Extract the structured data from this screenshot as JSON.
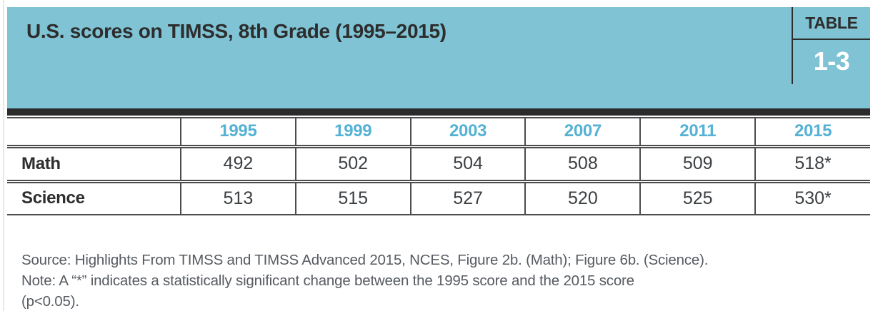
{
  "header": {
    "title": "U.S. scores on TIMSS, 8th Grade (1995–2015)",
    "corner_label": "TABLE",
    "corner_number": "1-3"
  },
  "table": {
    "columns": [
      "",
      "1995",
      "1999",
      "2003",
      "2007",
      "2011",
      "2015"
    ],
    "rows": [
      {
        "label": "Math",
        "values": [
          "492",
          "502",
          "504",
          "508",
          "509",
          "518*"
        ]
      },
      {
        "label": "Science",
        "values": [
          "513",
          "515",
          "527",
          "520",
          "525",
          "530*"
        ]
      }
    ]
  },
  "chart_data": {
    "type": "table",
    "title": "U.S. scores on TIMSS, 8th Grade (1995–2015)",
    "categories": [
      "1995",
      "1999",
      "2003",
      "2007",
      "2011",
      "2015"
    ],
    "series": [
      {
        "name": "Math",
        "values": [
          492,
          502,
          504,
          508,
          509,
          518
        ],
        "display": [
          "492",
          "502",
          "504",
          "508",
          "509",
          "518*"
        ]
      },
      {
        "name": "Science",
        "values": [
          513,
          515,
          527,
          520,
          525,
          530
        ],
        "display": [
          "513",
          "515",
          "527",
          "520",
          "525",
          "530*"
        ]
      }
    ],
    "annotations": "* indicates a statistically significant change between the 1995 score and the 2015 score (p<0.05)",
    "table_number": "1-3"
  },
  "footnote": {
    "line1": "Source: Highlights From TIMSS and TIMSS Advanced 2015, NCES, Figure 2b. (Math); Figure 6b. (Science).",
    "line2": "Note: A “*” indicates a statistically significant change between the 1995 score and the 2015 score",
    "line3": "(p<0.05)."
  },
  "colors": {
    "band_teal": "#7fc3d4",
    "year_header_blue": "#55b2d4",
    "black_bar": "#2b2b2b",
    "table_border": "#4c4c4c",
    "title_text": "#2d2d2d",
    "value_text": "#3c4043",
    "note_text": "#565b61",
    "corner_number_text": "#ffffff"
  }
}
